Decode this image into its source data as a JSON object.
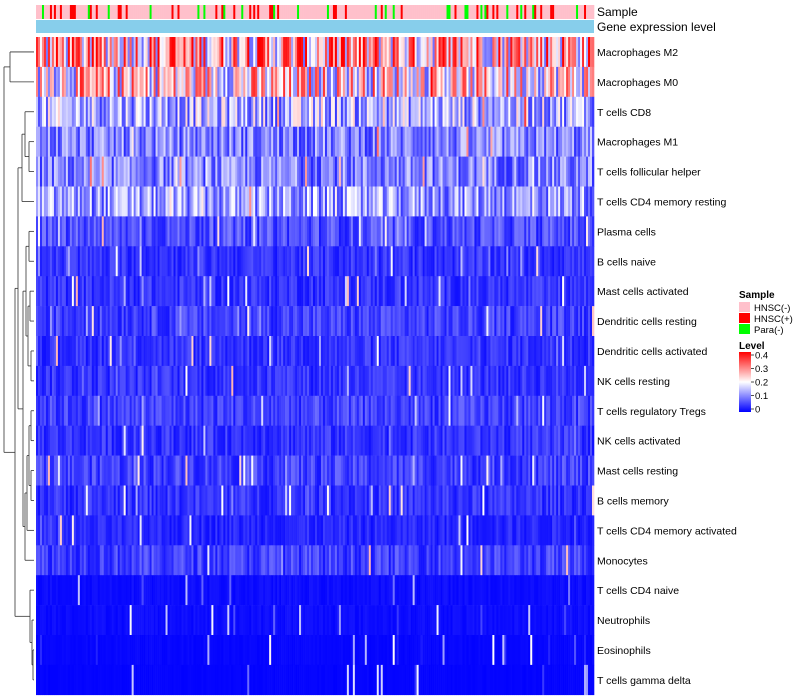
{
  "chart_data": {
    "type": "heatmap",
    "annotation_tracks": [
      "Sample",
      "Gene expression level"
    ],
    "rows": [
      {
        "label": "Macrophages M2",
        "mean": 0.26
      },
      {
        "label": "Macrophages M0",
        "mean": 0.22
      },
      {
        "label": "T cells CD8",
        "mean": 0.14
      },
      {
        "label": "Macrophages M1",
        "mean": 0.1
      },
      {
        "label": "T cells follicular helper",
        "mean": 0.1
      },
      {
        "label": "T cells CD4 memory resting",
        "mean": 0.12
      },
      {
        "label": "Plasma cells",
        "mean": 0.06
      },
      {
        "label": "B cells naive",
        "mean": 0.04
      },
      {
        "label": "Mast cells activated",
        "mean": 0.04
      },
      {
        "label": "Dendritic cells resting",
        "mean": 0.05
      },
      {
        "label": "Dendritic cells activated",
        "mean": 0.04
      },
      {
        "label": "NK cells resting",
        "mean": 0.04
      },
      {
        "label": "T cells regulatory  Tregs",
        "mean": 0.05
      },
      {
        "label": "NK cells activated",
        "mean": 0.04
      },
      {
        "label": "Mast cells resting",
        "mean": 0.05
      },
      {
        "label": "B cells memory",
        "mean": 0.04
      },
      {
        "label": "T cells CD4 memory activated",
        "mean": 0.03
      },
      {
        "label": "Monocytes",
        "mean": 0.05
      },
      {
        "label": "T cells CD4 naive",
        "mean": 0.01
      },
      {
        "label": "Neutrophils",
        "mean": 0.01
      },
      {
        "label": "Eosinophils",
        "mean": 0.005
      },
      {
        "label": "T cells gamma delta",
        "mean": 0.003
      }
    ],
    "legend_sample": {
      "title": "Sample",
      "entries": [
        {
          "label": "HNSC(-)",
          "color": "#ffc0cb"
        },
        {
          "label": "HNSC(+)",
          "color": "#ff0000"
        },
        {
          "label": "Para(-)",
          "color": "#00ff00"
        }
      ]
    },
    "legend_level": {
      "title": "Level",
      "ticks": [
        "0.4",
        "0.3",
        "0.2",
        "0.1",
        "0"
      ],
      "range": [
        0,
        0.4
      ],
      "colors": [
        "#0000ff",
        "#ffffff",
        "#ff0000"
      ]
    },
    "gene_expression_color": "#87ceeb"
  }
}
